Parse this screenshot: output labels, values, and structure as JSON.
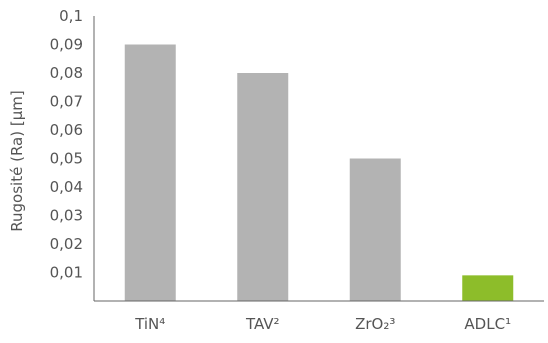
{
  "chart_data": {
    "type": "bar",
    "title": "",
    "xlabel": "",
    "ylabel": "Rugosité (Ra) [µm]",
    "categories": [
      "TiN⁴",
      "TAV²",
      "ZrO₂³",
      "ADLC¹"
    ],
    "values": [
      0.09,
      0.08,
      0.05,
      0.009
    ],
    "ylim": [
      0,
      0.1
    ],
    "yticks": [
      "0,01",
      "0,02",
      "0,03",
      "0,04",
      "0,05",
      "0,06",
      "0,07",
      "0,08",
      "0,09",
      "0,1"
    ],
    "bar_colors": [
      "#b3b3b3",
      "#b3b3b3",
      "#b3b3b3",
      "#8dbd2a"
    ],
    "grid": false,
    "legend": "none"
  }
}
